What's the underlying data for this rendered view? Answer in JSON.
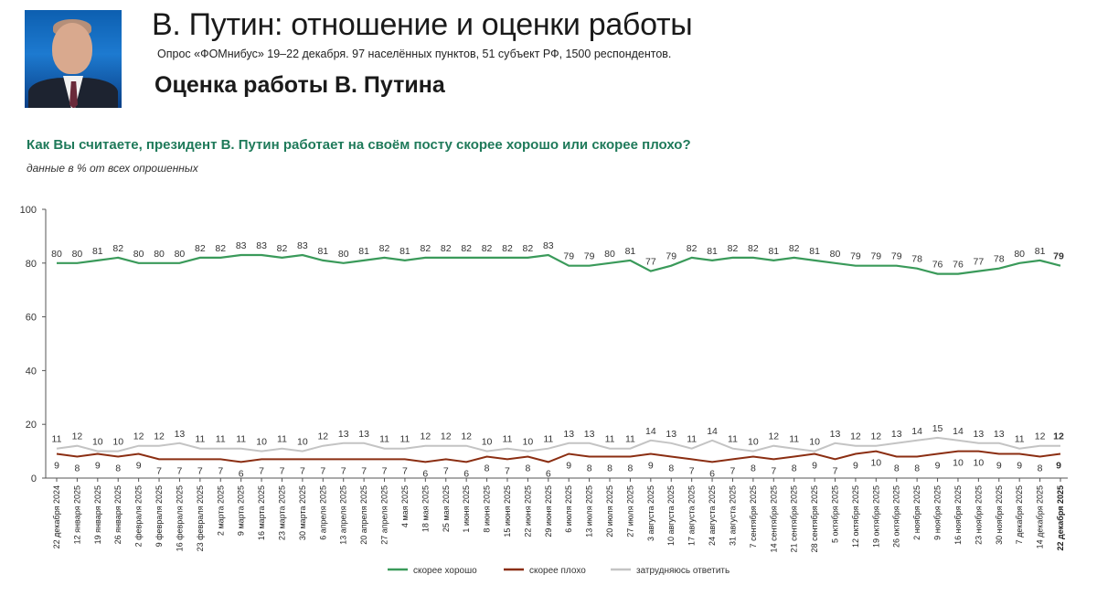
{
  "header": {
    "photo_label": "portrait-photo",
    "title": "В. Путин: отношение и оценки работы",
    "subtitle": "Опрос «ФОМнибус» 19–22 декабря. 97 населённых пунктов, 51 субъект РФ, 1500 респондентов.",
    "section_title": "Оценка работы В. Путина"
  },
  "question": "Как Вы считаете, президент В. Путин работает на своём посту скорее хорошо или скорее плохо?",
  "note": "данные в % от всех опрошенных",
  "chart_data": {
    "type": "line",
    "ylim": [
      0,
      100
    ],
    "yticks": [
      0,
      20,
      40,
      60,
      80,
      100
    ],
    "grid": false,
    "legend_position": "bottom",
    "categories": [
      "22 декабря 2024",
      "12 января 2025",
      "19 января 2025",
      "26 января 2025",
      "2 февраля 2025",
      "9 февраля 2025",
      "16 февраля 2025",
      "23 февраля 2025",
      "2 марта 2025",
      "9 марта 2025",
      "16 марта 2025",
      "23 марта 2025",
      "30 марта 2025",
      "6 апреля 2025",
      "13 апреля 2025",
      "20 апреля 2025",
      "27 апреля 2025",
      "4 мая 2025",
      "18 мая 2025",
      "25 мая 2025",
      "1 июня 2025",
      "8 июня 2025",
      "15 июня 2025",
      "22 июня 2025",
      "29 июня 2025",
      "6 июля 2025",
      "13 июля 2025",
      "20 июля 2025",
      "27 июля 2025",
      "3 августа 2025",
      "10 августа 2025",
      "17 августа 2025",
      "24 августа 2025",
      "31 августа 2025",
      "7 сентября 2025",
      "14 сентября 2025",
      "21 сентября 2025",
      "28 сентября 2025",
      "5 октября 2025",
      "12 октября 2025",
      "19 октября 2025",
      "26 октября 2025",
      "2 ноября 2025",
      "9 ноября 2025",
      "16 ноября 2025",
      "23 ноября 2025",
      "30 ноября 2025",
      "7 декабря 2025",
      "14 декабря 2025",
      "22 декабря 2025"
    ],
    "series": [
      {
        "name": "скорее хорошо",
        "color": "#3a9a5a",
        "label_position": "above",
        "values": [
          80,
          80,
          81,
          82,
          80,
          80,
          80,
          82,
          82,
          83,
          83,
          82,
          83,
          81,
          80,
          81,
          82,
          81,
          82,
          82,
          82,
          82,
          82,
          82,
          83,
          79,
          79,
          80,
          81,
          77,
          79,
          82,
          81,
          82,
          82,
          81,
          82,
          81,
          80,
          79,
          79,
          79,
          78,
          76,
          76,
          77,
          78,
          80,
          81,
          79
        ]
      },
      {
        "name": "скорее плохо",
        "color": "#8b2e12",
        "label_position": "below",
        "values": [
          9,
          8,
          9,
          8,
          9,
          7,
          7,
          7,
          7,
          6,
          7,
          7,
          7,
          7,
          7,
          7,
          7,
          7,
          6,
          7,
          6,
          8,
          7,
          8,
          6,
          9,
          8,
          8,
          8,
          9,
          8,
          7,
          6,
          7,
          8,
          7,
          8,
          9,
          7,
          9,
          10,
          8,
          8,
          9,
          10,
          10,
          9,
          9,
          8,
          9
        ]
      },
      {
        "name": "затрудняюсь ответить",
        "color": "#c4c4c4",
        "label_position": "above",
        "values": [
          11,
          12,
          10,
          10,
          12,
          12,
          13,
          11,
          11,
          11,
          10,
          11,
          10,
          12,
          13,
          13,
          11,
          11,
          12,
          12,
          12,
          10,
          11,
          10,
          11,
          13,
          13,
          11,
          11,
          14,
          13,
          11,
          14,
          11,
          10,
          12,
          11,
          10,
          13,
          12,
          12,
          13,
          14,
          15,
          14,
          13,
          13,
          11,
          12,
          12
        ]
      }
    ]
  }
}
